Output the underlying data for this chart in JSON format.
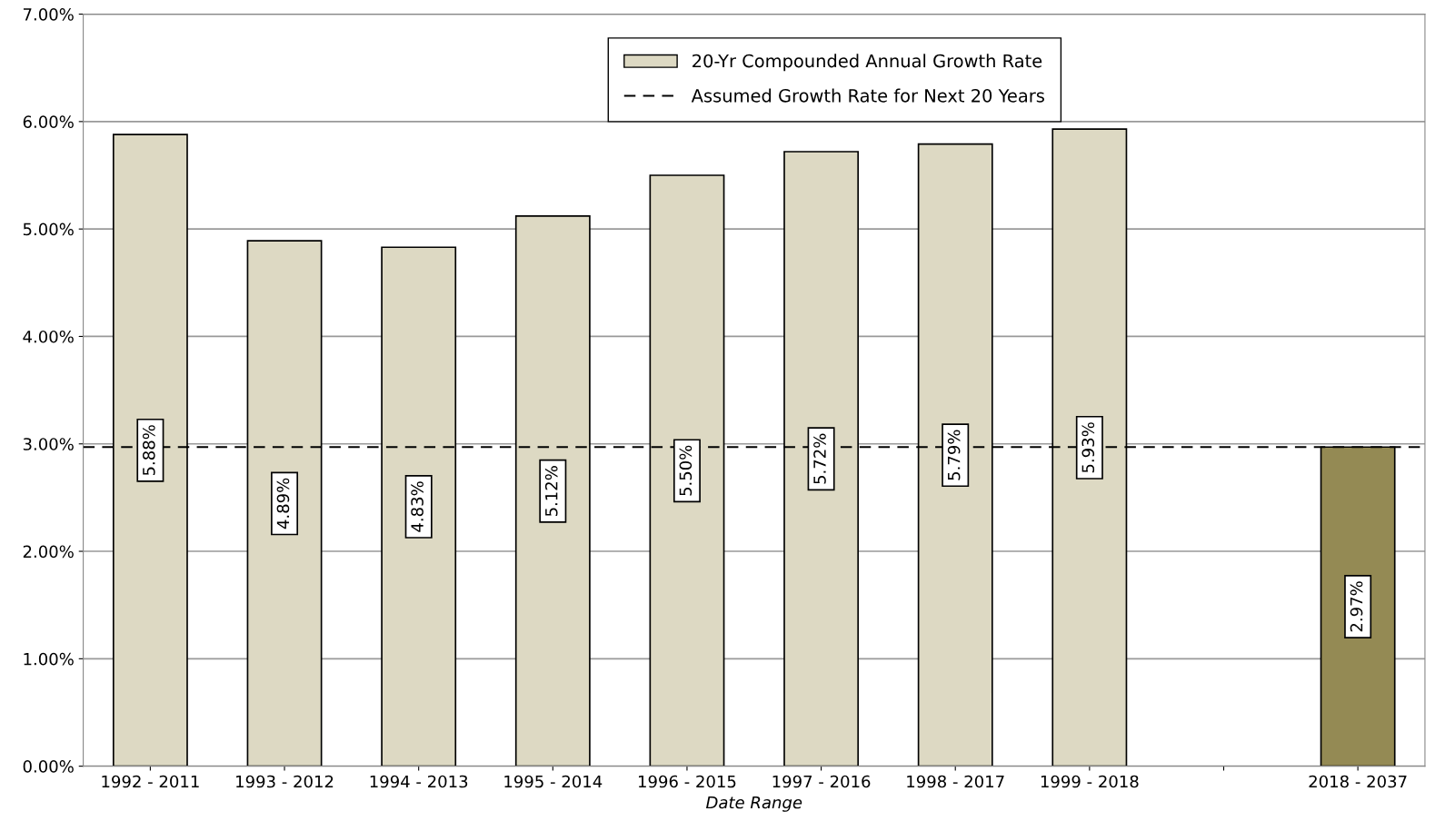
{
  "chart_data": {
    "type": "bar",
    "xlabel": "Date Range",
    "categories": [
      "1992 - 2011",
      "1993 - 2012",
      "1994 - 2013",
      "1995 - 2014",
      "1996 - 2015",
      "1997 - 2016",
      "1998 - 2017",
      "1999 - 2018",
      null,
      "2018 - 2037"
    ],
    "series": [
      {
        "name": "20-Yr Compounded Annual Growth Rate",
        "color": "#ddd9c3",
        "values": [
          5.88,
          4.89,
          4.83,
          5.12,
          5.5,
          5.72,
          5.79,
          5.93,
          null,
          2.97
        ],
        "colors": [
          "#ddd9c3",
          "#ddd9c3",
          "#ddd9c3",
          "#ddd9c3",
          "#ddd9c3",
          "#ddd9c3",
          "#ddd9c3",
          "#ddd9c3",
          "#ddd9c3",
          "#948a54"
        ],
        "value_labels": [
          "5.88%",
          "4.89%",
          "4.83%",
          "5.12%",
          "5.50%",
          "5.72%",
          "5.79%",
          "5.93%",
          null,
          "2.97%"
        ]
      }
    ],
    "ref_lines": [
      {
        "axis": "y",
        "value": 2.97,
        "label": "Assumed Growth Rate for Next 20 Years",
        "color": "#000000",
        "line_style": "dashed"
      }
    ],
    "ylim": [
      0,
      7
    ],
    "yticks": [
      {
        "value": 0,
        "label": "0.00%"
      },
      {
        "value": 1,
        "label": "1.00%"
      },
      {
        "value": 2,
        "label": "2.00%"
      },
      {
        "value": 3,
        "label": "3.00%"
      },
      {
        "value": 4,
        "label": "4.00%"
      },
      {
        "value": 5,
        "label": "5.00%"
      },
      {
        "value": 6,
        "label": "6.00%"
      },
      {
        "value": 7,
        "label": "7.00%"
      }
    ],
    "grid": "y",
    "legend": "top"
  }
}
